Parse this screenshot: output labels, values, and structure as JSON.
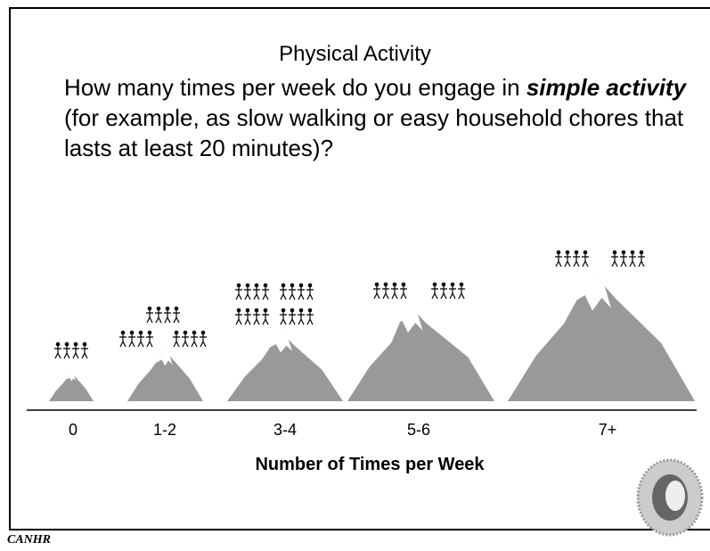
{
  "title": "Physical Activity",
  "question": [
    "How many times per week do you engage in ",
    "simple activity",
    " (for example, as slow walking or easy household chores that lasts at least 20 minutes)?"
  ],
  "categories": [
    "0",
    "1-2",
    "3-4",
    "5-6",
    "7+"
  ],
  "axis_label": "Number of Times per Week",
  "footer": "CANHR"
}
